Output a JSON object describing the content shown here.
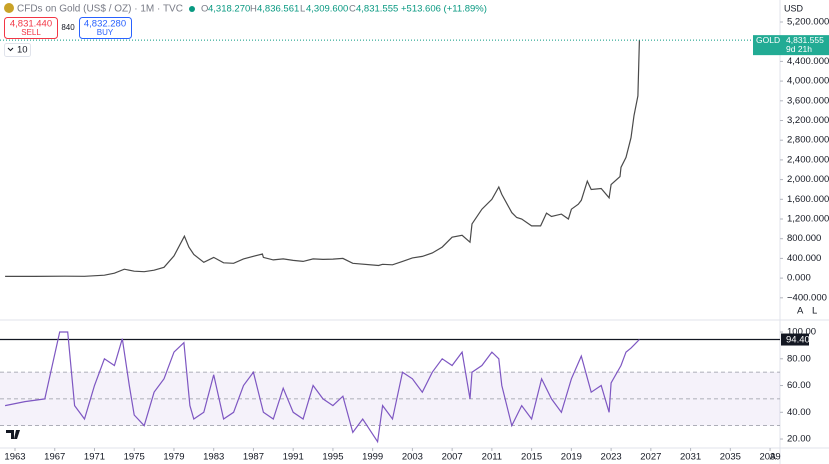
{
  "header": {
    "title": "CFDs on Gold (US$ / OZ) · 1M · TVC",
    "open_label": "O",
    "open": "4,318.270",
    "high_label": "H",
    "high": "4,836.561",
    "low_label": "L",
    "low": "4,309.600",
    "close_label": "C",
    "close": "4,831.555",
    "change": "+513.606 (+11.89%)",
    "sell_price": "4,831.440",
    "sell": "SELL",
    "spread": "840",
    "buy_price": "4,832.280",
    "buy": "BUY",
    "indicators": "10",
    "currency": "USD",
    "symbol_label": "GOLD",
    "countdown": "9d 21h",
    "scale_auto": "A",
    "scale_log": "L",
    "bottom_auto": "A"
  },
  "chart_data": [
    {
      "type": "line",
      "xlim": [
        1961.49,
        2040.0
      ],
      "ylim": [
        -810,
        5545
      ],
      "yticks": [
        {
          "value": 5200,
          "label": "5,200.000"
        },
        {
          "value": 4800,
          "label": "4,800.000"
        },
        {
          "value": 4400,
          "label": "4,400.000"
        },
        {
          "value": 4000,
          "label": "4,000.000"
        },
        {
          "value": 3600,
          "label": "3,600.000"
        },
        {
          "value": 3200,
          "label": "3,200.000"
        },
        {
          "value": 2800,
          "label": "2,800.000"
        },
        {
          "value": 2400,
          "label": "2,400.000"
        },
        {
          "value": 2000,
          "label": "2,000.000"
        },
        {
          "value": 1600,
          "label": "1,600.000"
        },
        {
          "value": 1200,
          "label": "1,200.000"
        },
        {
          "value": 800,
          "label": "800.000"
        },
        {
          "value": 400,
          "label": "400.000"
        },
        {
          "value": 0,
          "label": "0.000"
        },
        {
          "value": -400,
          "label": "−400.000"
        }
      ],
      "x": [
        1962,
        1965,
        1968,
        1970,
        1972,
        1973,
        1974,
        1975,
        1976,
        1977,
        1978,
        1979,
        1980.05,
        1980.5,
        1981,
        1982,
        1983,
        1984,
        1985,
        1986,
        1987.9,
        1988,
        1989,
        1990,
        1991,
        1992,
        1993,
        1994,
        1995,
        1996,
        1997,
        1999.6,
        2000,
        2001,
        2002,
        2003,
        2004,
        2005,
        2006,
        2007,
        2008,
        2008.8,
        2009,
        2010,
        2011,
        2011.7,
        2012,
        2013,
        2013.5,
        2014,
        2015,
        2015.9,
        2016.5,
        2017,
        2018,
        2018.7,
        2019,
        2019.7,
        2020,
        2020.6,
        2021,
        2022,
        2022.8,
        2023,
        2023.9,
        2024,
        2024.5,
        2025,
        2025.3,
        2025.7,
        2025.85
      ],
      "series": [
        {
          "color": "#4a4a4a",
          "values": [
            35,
            35,
            39,
            36,
            60,
            100,
            180,
            140,
            130,
            160,
            220,
            450,
            850,
            630,
            480,
            320,
            420,
            310,
            300,
            390,
            490,
            420,
            370,
            390,
            360,
            340,
            390,
            380,
            385,
            400,
            300,
            255,
            280,
            270,
            340,
            410,
            440,
            510,
            630,
            830,
            870,
            730,
            1100,
            1400,
            1600,
            1850,
            1700,
            1330,
            1230,
            1200,
            1060,
            1060,
            1320,
            1250,
            1300,
            1200,
            1400,
            1500,
            1580,
            1970,
            1800,
            1820,
            1630,
            1900,
            2060,
            2250,
            2450,
            2850,
            3300,
            3700,
            4831.555
          ]
        }
      ]
    },
    {
      "type": "line",
      "xlim": [
        1961.49,
        2040.0
      ],
      "ylim": [
        13.3,
        107.5
      ],
      "yticks": [
        {
          "value": 100,
          "label": "100.00"
        },
        {
          "value": 80,
          "label": "80.00"
        },
        {
          "value": 60,
          "label": "60.00"
        },
        {
          "value": 40,
          "label": "40.00"
        },
        {
          "value": 20,
          "label": "20.00"
        }
      ],
      "xticks": [
        1963,
        1967,
        1971,
        1975,
        1979,
        1983,
        1987,
        1991,
        1995,
        1999,
        2003,
        2007,
        2011,
        2015,
        2019,
        2023,
        2027,
        2031,
        2035,
        2039
      ],
      "levels": [
        70,
        50,
        30
      ],
      "reference_line": {
        "value": 94.4,
        "label": "94.40"
      },
      "x": [
        1962,
        1964,
        1966,
        1967.5,
        1968.3,
        1969,
        1970,
        1971,
        1972,
        1973,
        1973.8,
        1974.5,
        1975,
        1976,
        1977,
        1978,
        1979,
        1980,
        1980.6,
        1981,
        1982,
        1983,
        1984,
        1985,
        1986,
        1987,
        1988,
        1989,
        1990,
        1991,
        1992,
        1993,
        1994,
        1995,
        1996,
        1997,
        1998,
        1999.5,
        2000,
        2001,
        2002,
        2003,
        2004,
        2005,
        2006,
        2007,
        2008,
        2008.8,
        2009,
        2010,
        2011,
        2011.7,
        2012,
        2013,
        2014,
        2015,
        2016,
        2017,
        2018,
        2019,
        2020,
        2021,
        2022,
        2022.8,
        2023,
        2024,
        2024.5,
        2025,
        2025.85
      ],
      "series": [
        {
          "color": "#7e57c2",
          "values": [
            45,
            48,
            50,
            100,
            100,
            45,
            35,
            60,
            80,
            75,
            95,
            60,
            38,
            30,
            55,
            65,
            85,
            92,
            45,
            35,
            40,
            68,
            35,
            40,
            60,
            70,
            40,
            35,
            58,
            40,
            35,
            60,
            50,
            45,
            52,
            25,
            35,
            18,
            45,
            35,
            70,
            65,
            55,
            70,
            80,
            75,
            85,
            50,
            70,
            75,
            85,
            80,
            60,
            30,
            45,
            35,
            65,
            50,
            40,
            65,
            82,
            55,
            60,
            40,
            62,
            75,
            85,
            88,
            94.4
          ]
        }
      ]
    }
  ]
}
